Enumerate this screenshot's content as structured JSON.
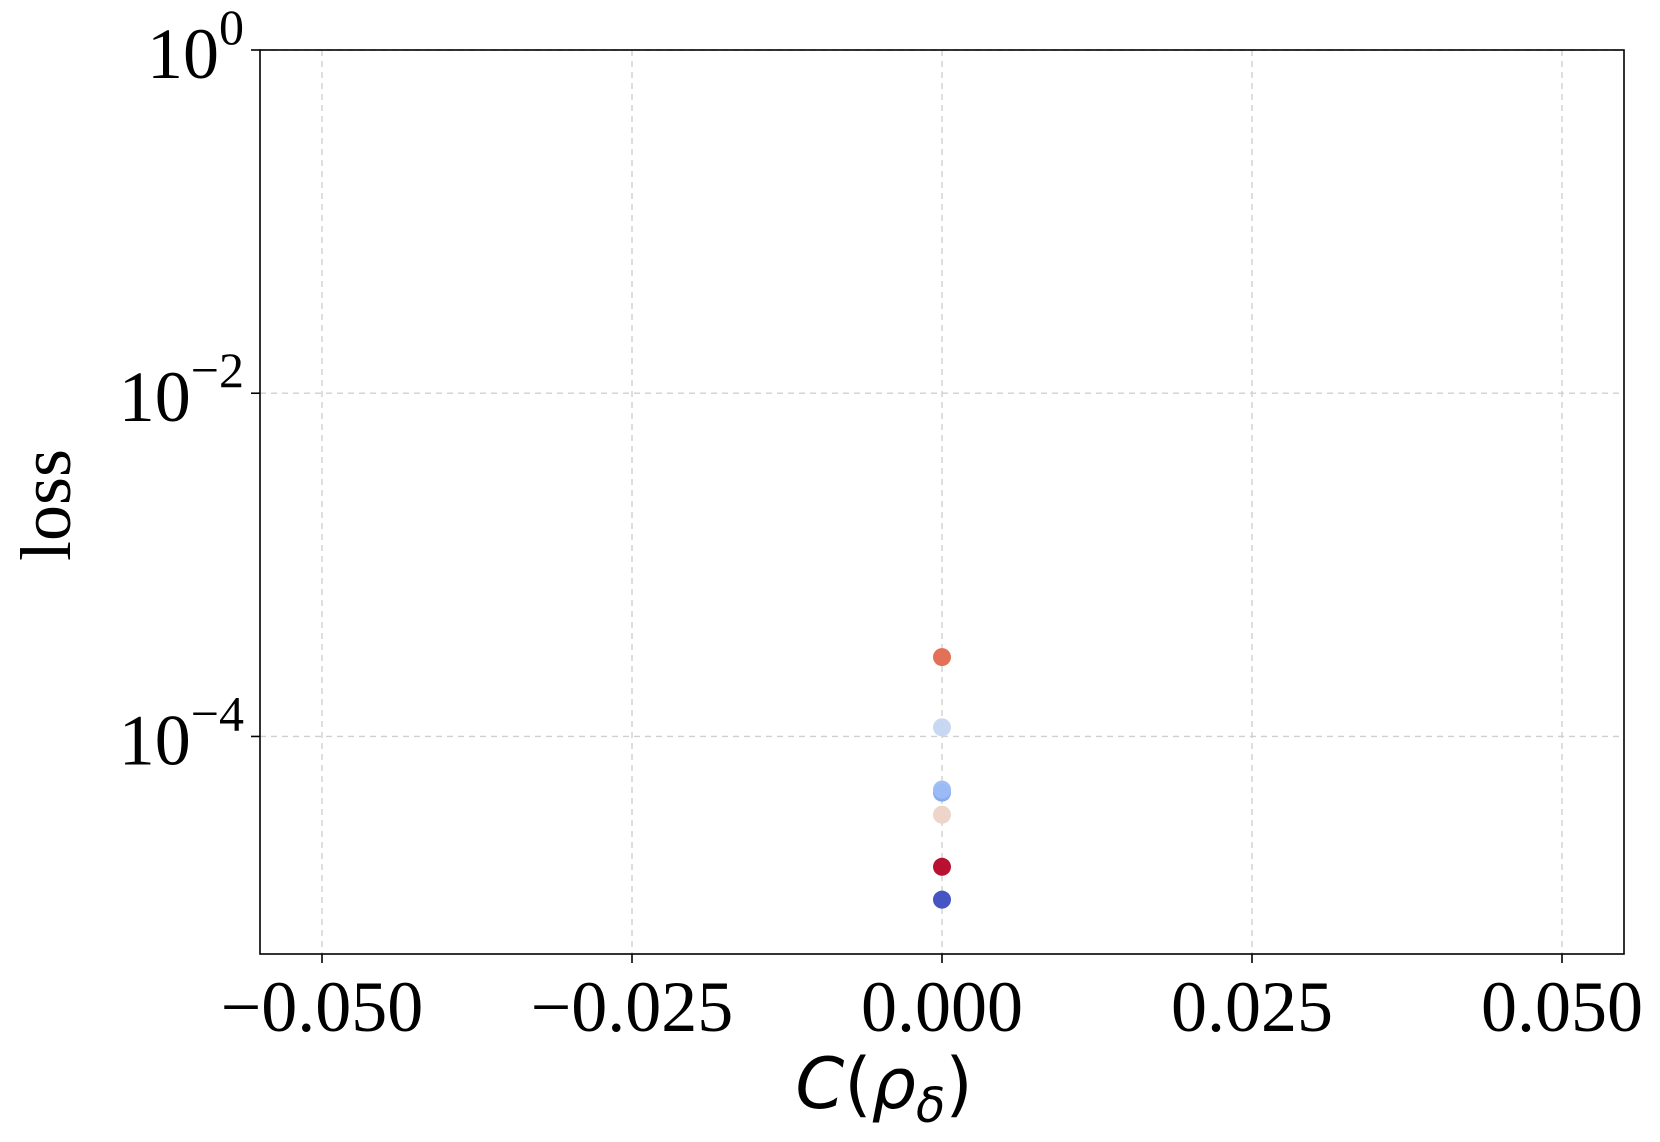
{
  "chart_data": {
    "type": "scatter",
    "title": "",
    "xlabel": {
      "C": "C",
      "open": "(",
      "rho": "ρ",
      "sub": "δ",
      "close": ")"
    },
    "ylabel": "loss",
    "xlim": [
      -0.055,
      0.055
    ],
    "ylim": [
      5.4e-06,
      1
    ],
    "yscale": "log",
    "grid": true,
    "x_ticks": [
      {
        "value": -0.05,
        "label": "−0.050"
      },
      {
        "value": -0.025,
        "label": "−0.025"
      },
      {
        "value": 0.0,
        "label": "0.000"
      },
      {
        "value": 0.025,
        "label": "0.025"
      },
      {
        "value": 0.05,
        "label": "0.050"
      }
    ],
    "y_ticks": [
      {
        "value": 1,
        "base": "10",
        "exp": "0"
      },
      {
        "value": 0.01,
        "base": "10",
        "exp": "−2"
      },
      {
        "value": 0.0001,
        "base": "10",
        "exp": "−4"
      }
    ],
    "points": [
      {
        "x": 0.0,
        "y": 0.00029,
        "color": "#e0694f"
      },
      {
        "x": 0.0,
        "y": 0.000113,
        "color": "#c5d6f2"
      },
      {
        "x": 0.0,
        "y": 4.7e-05,
        "color": "#7fa6f0"
      },
      {
        "x": 0.0,
        "y": 4.9e-05,
        "color": "#9bbcf4"
      },
      {
        "x": 0.0,
        "y": 3.5e-05,
        "color": "#ecd3c6"
      },
      {
        "x": 0.0,
        "y": 1.74e-05,
        "color": "#b40426"
      },
      {
        "x": 0.0,
        "y": 1.12e-05,
        "color": "#3b4cc0"
      }
    ]
  }
}
